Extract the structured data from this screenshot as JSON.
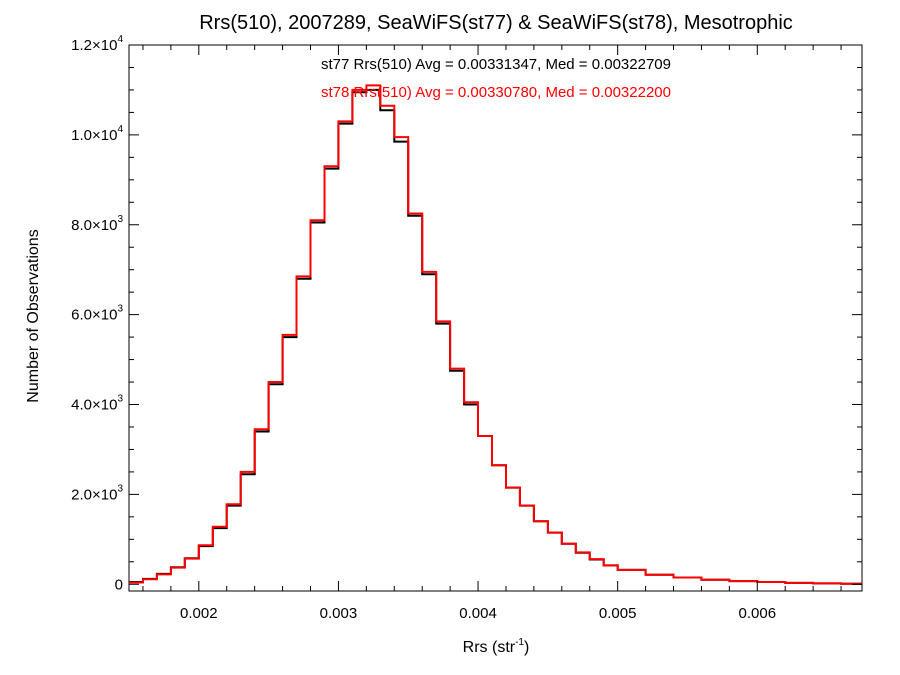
{
  "chart_data": {
    "type": "histogram",
    "title": "Rrs(510), 2007289, SeaWiFS(st77) & SeaWiFS(st78), Mesotrophic",
    "xlabel": "Rrs (str",
    "xlabel_sup": "-1",
    "xlabel_close": ")",
    "ylabel": "Number of Observations",
    "xlim": [
      0.0015,
      0.00675
    ],
    "ylim": [
      -150,
      12000
    ],
    "grid": false,
    "x_ticks": [
      {
        "value": 0.002,
        "label": "0.002"
      },
      {
        "value": 0.003,
        "label": "0.003"
      },
      {
        "value": 0.004,
        "label": "0.004"
      },
      {
        "value": 0.005,
        "label": "0.005"
      },
      {
        "value": 0.006,
        "label": "0.006"
      }
    ],
    "y_ticks": [
      {
        "value": 0,
        "mant": "0",
        "exp": ""
      },
      {
        "value": 2000,
        "mant": "2.0×10",
        "exp": "3"
      },
      {
        "value": 4000,
        "mant": "4.0×10",
        "exp": "3"
      },
      {
        "value": 6000,
        "mant": "6.0×10",
        "exp": "3"
      },
      {
        "value": 8000,
        "mant": "8.0×10",
        "exp": "3"
      },
      {
        "value": 10000,
        "mant": "1.0×10",
        "exp": "4"
      },
      {
        "value": 12000,
        "mant": "1.2×10",
        "exp": "4"
      }
    ],
    "annotations": [
      {
        "text": "st77 Rrs(510) Avg = 0.00331347, Med = 0.00322709",
        "color": "#000000"
      },
      {
        "text": "st78 Rrs(510) Avg = 0.00330780, Med = 0.00322200",
        "color": "#ff0000"
      }
    ],
    "series": [
      {
        "name": "st77",
        "color": "#000000",
        "x": [
          0.0015,
          0.0016,
          0.0017,
          0.0018,
          0.0019,
          0.002,
          0.0021,
          0.0022,
          0.0023,
          0.0024,
          0.0025,
          0.0026,
          0.0027,
          0.0028,
          0.0029,
          0.003,
          0.0031,
          0.0032,
          0.0033,
          0.0034,
          0.0035,
          0.0036,
          0.0037,
          0.0038,
          0.0039,
          0.004,
          0.0041,
          0.0042,
          0.0043,
          0.0044,
          0.0045,
          0.0046,
          0.0047,
          0.0048,
          0.0049,
          0.005,
          0.0052,
          0.0054,
          0.0056,
          0.0058,
          0.006,
          0.0062,
          0.0064,
          0.0066,
          0.00675
        ],
        "y": [
          50,
          120,
          230,
          380,
          580,
          850,
          1250,
          1750,
          2450,
          3400,
          4450,
          5500,
          6800,
          8050,
          9250,
          10250,
          10950,
          11000,
          10550,
          9850,
          8200,
          6900,
          5800,
          4750,
          4000,
          3300,
          2650,
          2150,
          1750,
          1400,
          1150,
          900,
          700,
          550,
          420,
          320,
          210,
          150,
          100,
          70,
          50,
          30,
          20,
          10,
          5
        ]
      },
      {
        "name": "st78",
        "color": "#ff0000",
        "x": [
          0.0015,
          0.0016,
          0.0017,
          0.0018,
          0.0019,
          0.002,
          0.0021,
          0.0022,
          0.0023,
          0.0024,
          0.0025,
          0.0026,
          0.0027,
          0.0028,
          0.0029,
          0.003,
          0.0031,
          0.0032,
          0.0033,
          0.0034,
          0.0035,
          0.0036,
          0.0037,
          0.0038,
          0.0039,
          0.004,
          0.0041,
          0.0042,
          0.0043,
          0.0044,
          0.0045,
          0.0046,
          0.0047,
          0.0048,
          0.0049,
          0.005,
          0.0052,
          0.0054,
          0.0056,
          0.0058,
          0.006,
          0.0062,
          0.0064,
          0.0066,
          0.00675
        ],
        "y": [
          40,
          110,
          220,
          370,
          570,
          870,
          1280,
          1780,
          2500,
          3450,
          4500,
          5550,
          6850,
          8100,
          9300,
          10300,
          11000,
          11100,
          10650,
          9950,
          8250,
          6950,
          5850,
          4800,
          4050,
          3300,
          2650,
          2150,
          1750,
          1400,
          1150,
          900,
          710,
          560,
          420,
          320,
          210,
          150,
          100,
          70,
          50,
          30,
          20,
          10,
          5
        ]
      }
    ]
  }
}
